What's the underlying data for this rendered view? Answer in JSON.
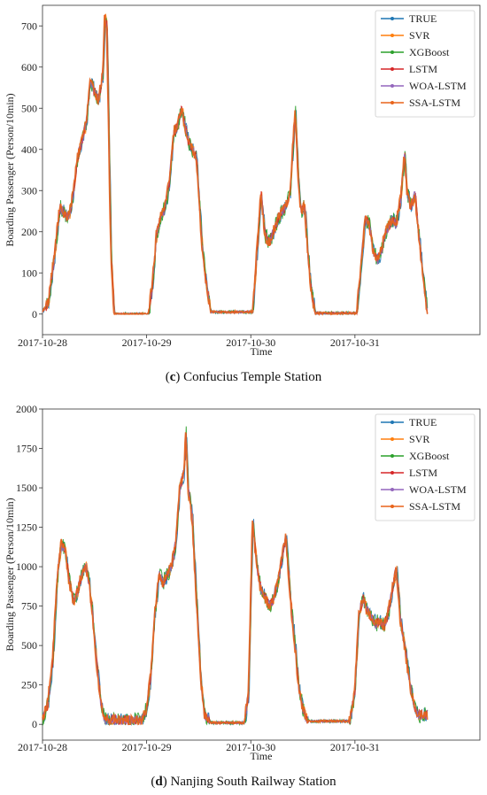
{
  "captions": [
    {
      "letter": "c",
      "text": " Confucius Temple Station"
    },
    {
      "letter": "d",
      "text": " Nanjing South Railway Station"
    }
  ],
  "chart_data": [
    {
      "type": "line",
      "xlabel": "Time",
      "ylabel": "Boarding Passenger (Person/10min)",
      "xticks": [
        "2017-10-28",
        "2017-10-29",
        "2017-10-30",
        "2017-10-31"
      ],
      "xlim": [
        0,
        4.2
      ],
      "ylim": [
        -50,
        750
      ],
      "yticks": [
        0,
        100,
        200,
        300,
        400,
        500,
        600,
        700
      ],
      "legend_position": "top-right",
      "series": [
        {
          "name": "TRUE",
          "color": "#1f77b4"
        },
        {
          "name": "SVR",
          "color": "#ff7f0e"
        },
        {
          "name": "XGBoost",
          "color": "#2ca02c"
        },
        {
          "name": "LSTM",
          "color": "#d62728"
        },
        {
          "name": "WOA-LSTM",
          "color": "#9467bd"
        },
        {
          "name": "SSA-LSTM",
          "color": "#e8641b"
        }
      ],
      "profile": [
        [
          0.0,
          5
        ],
        [
          0.06,
          30
        ],
        [
          0.12,
          150
        ],
        [
          0.17,
          260
        ],
        [
          0.22,
          240
        ],
        [
          0.26,
          240
        ],
        [
          0.3,
          300
        ],
        [
          0.34,
          380
        ],
        [
          0.38,
          420
        ],
        [
          0.42,
          460
        ],
        [
          0.46,
          570
        ],
        [
          0.5,
          540
        ],
        [
          0.54,
          520
        ],
        [
          0.58,
          580
        ],
        [
          0.6,
          720
        ],
        [
          0.62,
          700
        ],
        [
          0.64,
          420
        ],
        [
          0.66,
          150
        ],
        [
          0.69,
          0
        ],
        [
          1.02,
          0
        ],
        [
          1.06,
          80
        ],
        [
          1.1,
          200
        ],
        [
          1.14,
          240
        ],
        [
          1.18,
          260
        ],
        [
          1.22,
          320
        ],
        [
          1.26,
          440
        ],
        [
          1.3,
          460
        ],
        [
          1.34,
          500
        ],
        [
          1.36,
          470
        ],
        [
          1.4,
          420
        ],
        [
          1.44,
          400
        ],
        [
          1.48,
          380
        ],
        [
          1.5,
          300
        ],
        [
          1.53,
          180
        ],
        [
          1.57,
          80
        ],
        [
          1.62,
          5
        ],
        [
          2.02,
          5
        ],
        [
          2.06,
          150
        ],
        [
          2.1,
          300
        ],
        [
          2.14,
          190
        ],
        [
          2.18,
          175
        ],
        [
          2.22,
          200
        ],
        [
          2.26,
          230
        ],
        [
          2.3,
          250
        ],
        [
          2.34,
          260
        ],
        [
          2.38,
          300
        ],
        [
          2.41,
          420
        ],
        [
          2.43,
          490
        ],
        [
          2.46,
          320
        ],
        [
          2.48,
          250
        ],
        [
          2.52,
          260
        ],
        [
          2.55,
          150
        ],
        [
          2.58,
          60
        ],
        [
          2.62,
          2
        ],
        [
          3.02,
          2
        ],
        [
          3.06,
          120
        ],
        [
          3.1,
          230
        ],
        [
          3.14,
          220
        ],
        [
          3.18,
          150
        ],
        [
          3.22,
          130
        ],
        [
          3.26,
          160
        ],
        [
          3.3,
          200
        ],
        [
          3.36,
          230
        ],
        [
          3.4,
          220
        ],
        [
          3.44,
          280
        ],
        [
          3.48,
          390
        ],
        [
          3.5,
          300
        ],
        [
          3.54,
          260
        ],
        [
          3.58,
          290
        ],
        [
          3.62,
          180
        ],
        [
          3.66,
          80
        ],
        [
          3.7,
          0
        ]
      ]
    },
    {
      "type": "line",
      "xlabel": "Time",
      "ylabel": "Boarding Passenger (Person/10min)",
      "xticks": [
        "2017-10-28",
        "2017-10-29",
        "2017-10-30",
        "2017-10-31"
      ],
      "xlim": [
        0,
        4.2
      ],
      "ylim": [
        -100,
        2000
      ],
      "yticks": [
        0,
        250,
        500,
        750,
        1000,
        1250,
        1500,
        1750,
        2000
      ],
      "legend_position": "top-right",
      "series": [
        {
          "name": "TRUE",
          "color": "#1f77b4"
        },
        {
          "name": "SVR",
          "color": "#ff7f0e"
        },
        {
          "name": "XGBoost",
          "color": "#2ca02c"
        },
        {
          "name": "LSTM",
          "color": "#d62728"
        },
        {
          "name": "WOA-LSTM",
          "color": "#9467bd"
        },
        {
          "name": "SSA-LSTM",
          "color": "#e8641b"
        }
      ],
      "profile": [
        [
          0.0,
          30
        ],
        [
          0.05,
          120
        ],
        [
          0.1,
          400
        ],
        [
          0.14,
          900
        ],
        [
          0.18,
          1150
        ],
        [
          0.22,
          1100
        ],
        [
          0.26,
          900
        ],
        [
          0.3,
          780
        ],
        [
          0.34,
          850
        ],
        [
          0.38,
          950
        ],
        [
          0.42,
          1000
        ],
        [
          0.45,
          900
        ],
        [
          0.48,
          700
        ],
        [
          0.52,
          400
        ],
        [
          0.56,
          150
        ],
        [
          0.6,
          30
        ],
        [
          0.95,
          20
        ],
        [
          1.0,
          100
        ],
        [
          1.04,
          300
        ],
        [
          1.08,
          700
        ],
        [
          1.12,
          950
        ],
        [
          1.16,
          900
        ],
        [
          1.2,
          950
        ],
        [
          1.24,
          1000
        ],
        [
          1.28,
          1150
        ],
        [
          1.32,
          1500
        ],
        [
          1.36,
          1600
        ],
        [
          1.38,
          1850
        ],
        [
          1.4,
          1500
        ],
        [
          1.44,
          1300
        ],
        [
          1.48,
          800
        ],
        [
          1.52,
          300
        ],
        [
          1.56,
          50
        ],
        [
          1.62,
          10
        ],
        [
          1.94,
          10
        ],
        [
          1.98,
          200
        ],
        [
          2.02,
          1300
        ],
        [
          2.06,
          1000
        ],
        [
          2.1,
          850
        ],
        [
          2.14,
          800
        ],
        [
          2.18,
          750
        ],
        [
          2.22,
          800
        ],
        [
          2.26,
          900
        ],
        [
          2.3,
          1050
        ],
        [
          2.34,
          1200
        ],
        [
          2.38,
          800
        ],
        [
          2.42,
          550
        ],
        [
          2.46,
          250
        ],
        [
          2.5,
          100
        ],
        [
          2.55,
          20
        ],
        [
          2.95,
          20
        ],
        [
          3.0,
          200
        ],
        [
          3.04,
          700
        ],
        [
          3.08,
          800
        ],
        [
          3.12,
          720
        ],
        [
          3.16,
          680
        ],
        [
          3.2,
          640
        ],
        [
          3.24,
          650
        ],
        [
          3.28,
          620
        ],
        [
          3.32,
          700
        ],
        [
          3.36,
          850
        ],
        [
          3.4,
          1000
        ],
        [
          3.44,
          650
        ],
        [
          3.48,
          500
        ],
        [
          3.52,
          300
        ],
        [
          3.56,
          150
        ],
        [
          3.6,
          60
        ]
      ]
    }
  ]
}
